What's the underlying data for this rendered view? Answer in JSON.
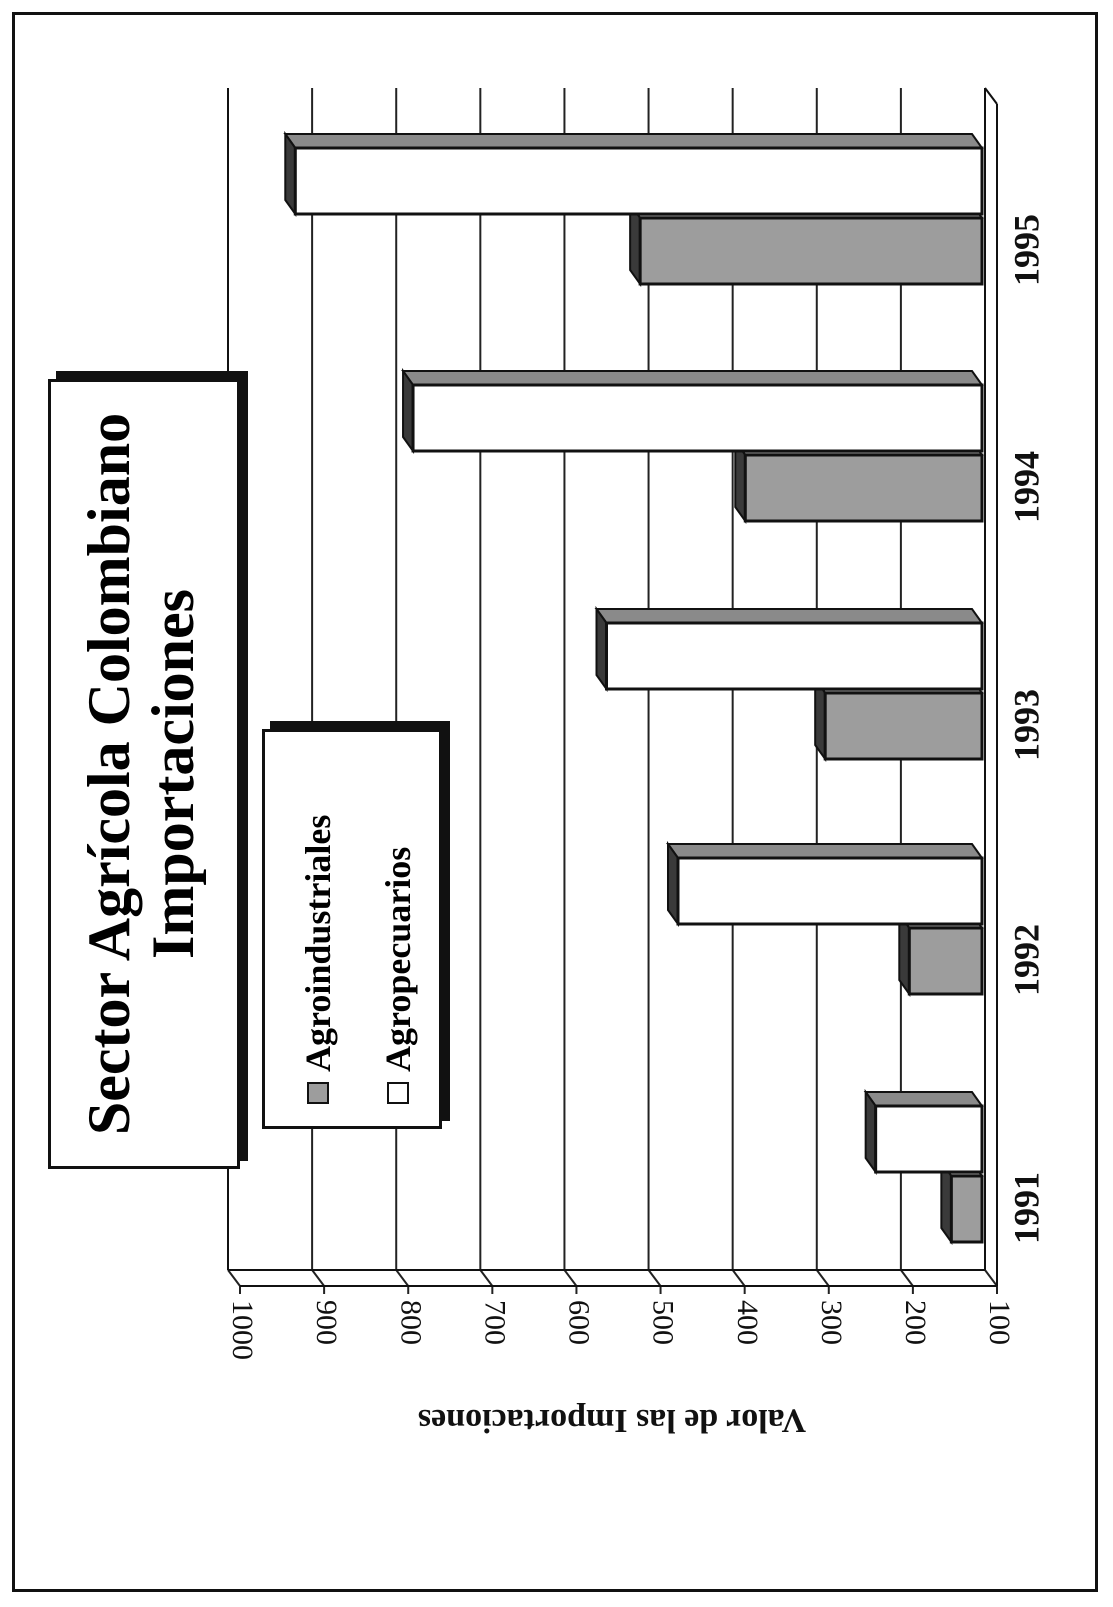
{
  "chart_data": {
    "type": "bar",
    "orientation": "rotated-90-counterclockwise",
    "title": "Sector Agrícola Colombiano",
    "subtitle": "Importaciones",
    "xlabel": "",
    "ylabel": "Valor de las Importaciones",
    "categories": [
      "1991",
      "1992",
      "1993",
      "1994",
      "1995"
    ],
    "yticks": [
      "100",
      "200",
      "300",
      "400",
      "500",
      "600",
      "700",
      "800",
      "900",
      "1000"
    ],
    "ylim": [
      100,
      1000
    ],
    "grid": true,
    "legend_position": "top-left",
    "series": [
      {
        "name": "Agroindustriales",
        "color": "#9d9d9d",
        "values": [
          140,
          190,
          290,
          385,
          510
        ]
      },
      {
        "name": "Agropecuarios",
        "color": "#ffffff",
        "values": [
          230,
          465,
          550,
          780,
          920
        ]
      }
    ]
  },
  "colors": {
    "ink": "#111111",
    "grid": "#222222",
    "shade": "#9d9d9d"
  }
}
